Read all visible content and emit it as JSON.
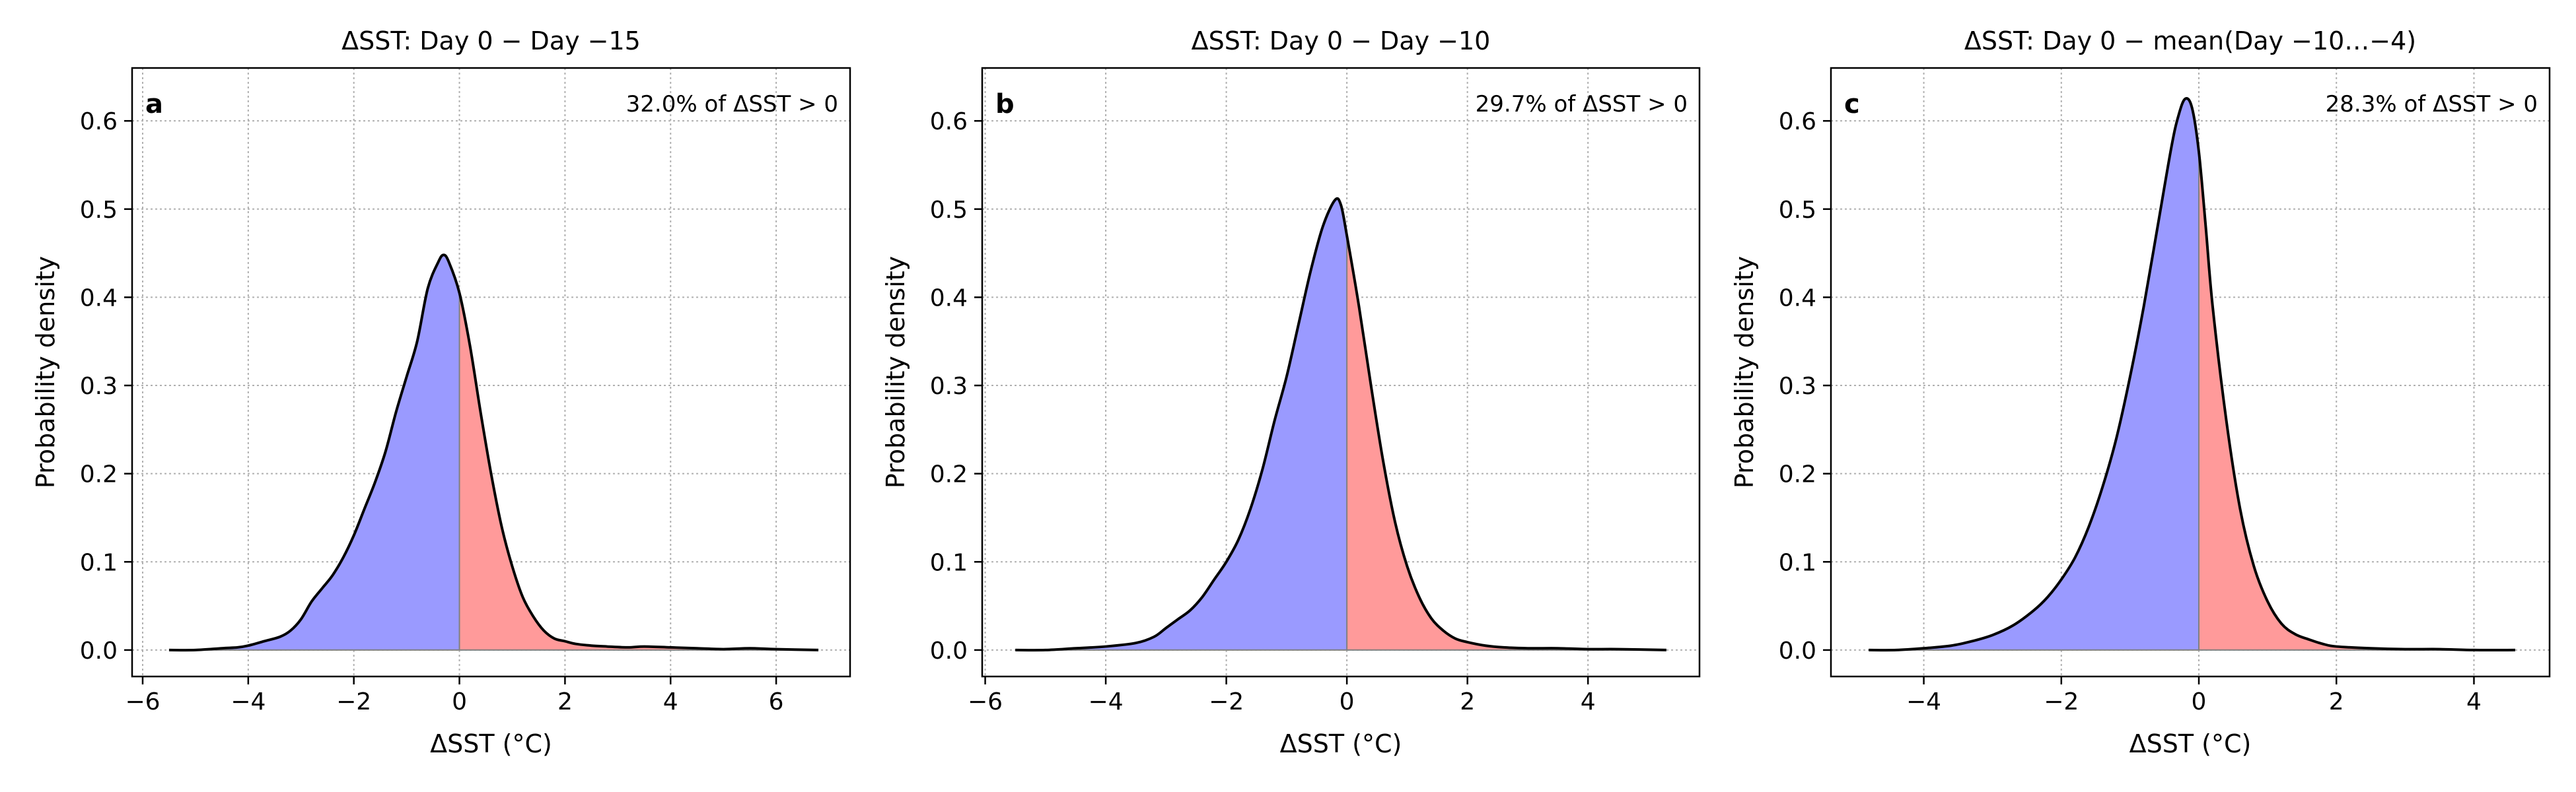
{
  "colors": {
    "negative_fill": "#9a9aff",
    "positive_fill": "#ff9a9a",
    "curve": "#000000",
    "zero_line": "#808080",
    "grid": "#b0b0b0"
  },
  "chart_data": [
    {
      "type": "area",
      "panel_label": "a",
      "title": "ΔSST: Day 0 − Day −15",
      "annotation": "32.0% of ΔSST > 0",
      "xlabel": "ΔSST (°C)",
      "ylabel": "Probability density",
      "xlim": [
        -6.2,
        7.4
      ],
      "ylim": [
        -0.03,
        0.66
      ],
      "xticks": [
        -6,
        -4,
        -2,
        0,
        2,
        4,
        6
      ],
      "yticks": [
        0.0,
        0.1,
        0.2,
        0.3,
        0.4,
        0.5,
        0.6
      ],
      "grid": true,
      "shading": {
        "below_zero": "negative_fill",
        "above_zero": "positive_fill"
      },
      "x": [
        -5.5,
        -5.0,
        -4.5,
        -4.2,
        -4.0,
        -3.7,
        -3.4,
        -3.2,
        -3.0,
        -2.8,
        -2.6,
        -2.4,
        -2.2,
        -2.0,
        -1.8,
        -1.6,
        -1.4,
        -1.2,
        -1.0,
        -0.8,
        -0.6,
        -0.4,
        -0.3,
        -0.2,
        0.0,
        0.2,
        0.4,
        0.6,
        0.8,
        1.0,
        1.2,
        1.4,
        1.6,
        1.8,
        2.0,
        2.2,
        2.5,
        2.8,
        3.2,
        3.5,
        4.0,
        4.5,
        5.0,
        5.5,
        6.0,
        6.8
      ],
      "y": [
        0.0,
        0.0,
        0.002,
        0.003,
        0.005,
        0.01,
        0.015,
        0.022,
        0.035,
        0.055,
        0.07,
        0.085,
        0.105,
        0.13,
        0.16,
        0.19,
        0.225,
        0.27,
        0.31,
        0.35,
        0.41,
        0.44,
        0.448,
        0.44,
        0.405,
        0.345,
        0.27,
        0.2,
        0.14,
        0.095,
        0.06,
        0.038,
        0.022,
        0.013,
        0.01,
        0.007,
        0.005,
        0.004,
        0.003,
        0.004,
        0.003,
        0.002,
        0.001,
        0.002,
        0.001,
        0.0
      ]
    },
    {
      "type": "area",
      "panel_label": "b",
      "title": "ΔSST: Day 0 − Day −10",
      "annotation": "29.7% of ΔSST > 0",
      "xlabel": "ΔSST (°C)",
      "ylabel": "Probability density",
      "xlim": [
        -6.05,
        5.85
      ],
      "ylim": [
        -0.03,
        0.66
      ],
      "xticks": [
        -6,
        -4,
        -2,
        0,
        2,
        4
      ],
      "yticks": [
        0.0,
        0.1,
        0.2,
        0.3,
        0.4,
        0.5,
        0.6
      ],
      "grid": true,
      "shading": {
        "below_zero": "negative_fill",
        "above_zero": "positive_fill"
      },
      "x": [
        -5.5,
        -5.0,
        -4.5,
        -4.0,
        -3.5,
        -3.2,
        -3.0,
        -2.8,
        -2.6,
        -2.4,
        -2.2,
        -2.0,
        -1.8,
        -1.6,
        -1.4,
        -1.2,
        -1.0,
        -0.8,
        -0.6,
        -0.4,
        -0.2,
        -0.1,
        0.0,
        0.2,
        0.4,
        0.6,
        0.8,
        1.0,
        1.2,
        1.4,
        1.6,
        1.8,
        2.0,
        2.3,
        2.6,
        3.0,
        3.5,
        4.0,
        4.5,
        5.3
      ],
      "y": [
        0.0,
        0.0,
        0.002,
        0.004,
        0.008,
        0.015,
        0.025,
        0.035,
        0.045,
        0.06,
        0.08,
        0.1,
        0.125,
        0.16,
        0.205,
        0.26,
        0.31,
        0.37,
        0.43,
        0.48,
        0.51,
        0.505,
        0.47,
        0.39,
        0.3,
        0.215,
        0.145,
        0.095,
        0.06,
        0.036,
        0.022,
        0.013,
        0.009,
        0.005,
        0.003,
        0.002,
        0.002,
        0.001,
        0.001,
        0.0
      ]
    },
    {
      "type": "area",
      "panel_label": "c",
      "title": "ΔSST: Day 0 − mean(Day −10…−4)",
      "annotation": "28.3% of ΔSST > 0",
      "xlabel": "ΔSST (°C)",
      "ylabel": "Probability density",
      "xlim": [
        -5.35,
        5.1
      ],
      "ylim": [
        -0.03,
        0.66
      ],
      "xticks": [
        -4,
        -2,
        0,
        2,
        4
      ],
      "yticks": [
        0.0,
        0.1,
        0.2,
        0.3,
        0.4,
        0.5,
        0.6
      ],
      "grid": true,
      "shading": {
        "below_zero": "negative_fill",
        "above_zero": "positive_fill"
      },
      "x": [
        -4.8,
        -4.4,
        -4.0,
        -3.6,
        -3.3,
        -3.0,
        -2.7,
        -2.4,
        -2.2,
        -2.0,
        -1.8,
        -1.6,
        -1.4,
        -1.2,
        -1.0,
        -0.8,
        -0.6,
        -0.4,
        -0.3,
        -0.2,
        -0.1,
        0.0,
        0.1,
        0.2,
        0.4,
        0.6,
        0.8,
        1.0,
        1.2,
        1.4,
        1.6,
        1.8,
        2.0,
        2.5,
        3.0,
        3.5,
        4.0,
        4.6
      ],
      "y": [
        0.0,
        0.0,
        0.002,
        0.005,
        0.01,
        0.017,
        0.028,
        0.045,
        0.06,
        0.08,
        0.105,
        0.14,
        0.185,
        0.24,
        0.31,
        0.39,
        0.48,
        0.57,
        0.605,
        0.625,
        0.615,
        0.565,
        0.48,
        0.39,
        0.26,
        0.16,
        0.095,
        0.055,
        0.03,
        0.018,
        0.012,
        0.007,
        0.004,
        0.002,
        0.001,
        0.001,
        0.0,
        0.0
      ]
    }
  ]
}
